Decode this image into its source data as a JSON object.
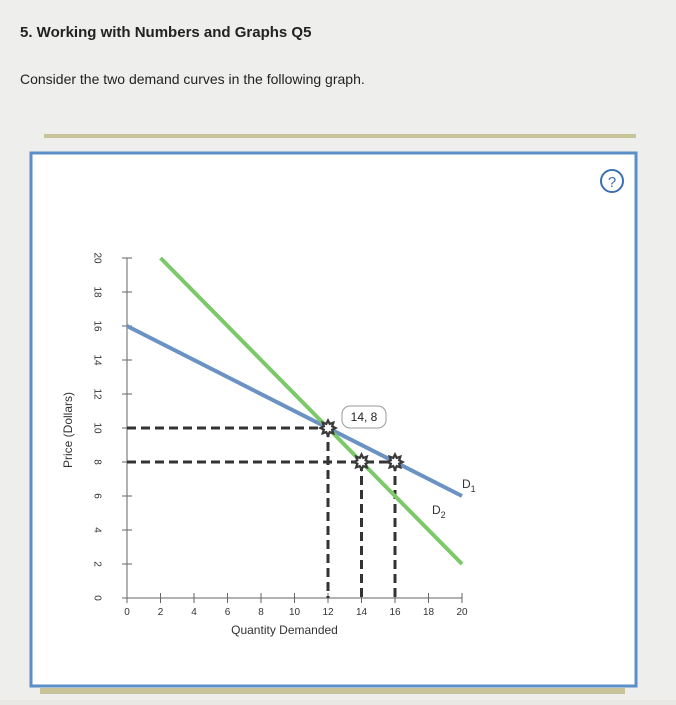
{
  "heading": "5. Working with Numbers and Graphs Q5",
  "prompt": "Consider the two demand curves in the following graph.",
  "help": "?",
  "chart_data": {
    "type": "line",
    "xlabel": "Quantity Demanded",
    "ylabel": "Price (Dollars)",
    "xlim": [
      0,
      20
    ],
    "ylim": [
      0,
      20
    ],
    "xticks": [
      0,
      2,
      4,
      6,
      8,
      10,
      12,
      14,
      16,
      18,
      20
    ],
    "yticks": [
      0,
      2,
      4,
      6,
      8,
      10,
      12,
      14,
      16,
      18,
      20
    ],
    "series": [
      {
        "name": "D1",
        "color": "#6a93c4",
        "x": [
          0,
          20
        ],
        "values": [
          16,
          6
        ]
      },
      {
        "name": "D2",
        "color": "#7cc96a",
        "x": [
          2,
          20
        ],
        "values": [
          20,
          2
        ]
      }
    ],
    "points": {
      "x": [
        12,
        14,
        16
      ],
      "values": [
        10,
        8,
        8
      ],
      "color": "#3a3a3a"
    },
    "tooltip": "14, 8"
  }
}
